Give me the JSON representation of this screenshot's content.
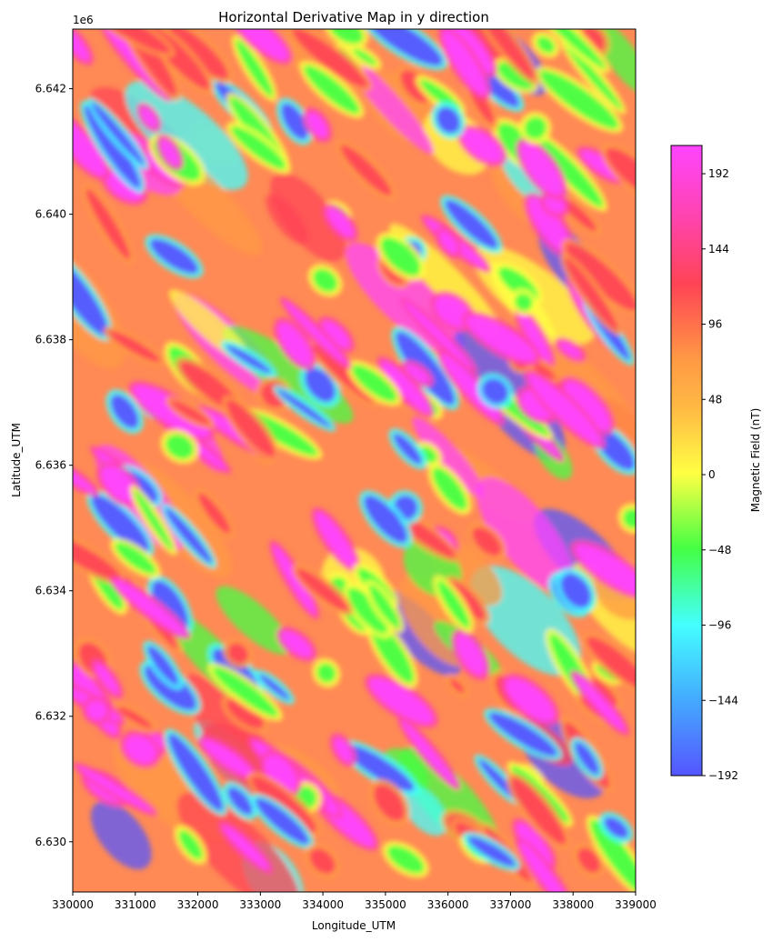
{
  "chart_data": {
    "type": "heatmap",
    "title": "Horizontal Derivative Map in y direction",
    "xlabel": "Longitude_UTM",
    "ylabel": "Latitude_UTM",
    "y_offset_label": "1e6",
    "xlim": [
      330000,
      339000
    ],
    "ylim": [
      6629200,
      6642950
    ],
    "x_ticks": [
      330000,
      331000,
      332000,
      333000,
      334000,
      335000,
      336000,
      337000,
      338000,
      339000
    ],
    "x_tick_labels": [
      "330000",
      "331000",
      "332000",
      "333000",
      "334000",
      "335000",
      "336000",
      "337000",
      "338000",
      "339000"
    ],
    "y_ticks": [
      6630000,
      6632000,
      6634000,
      6636000,
      6638000,
      6640000,
      6642000
    ],
    "y_tick_labels": [
      "6.630",
      "6.632",
      "6.634",
      "6.636",
      "6.638",
      "6.640",
      "6.642"
    ],
    "colorbar": {
      "label": "Magnetic Field (nT)",
      "range": [
        -192,
        210
      ],
      "ticks": [
        -192,
        -144,
        -96,
        -48,
        0,
        48,
        96,
        144,
        192
      ],
      "tick_labels": [
        "−192",
        "−144",
        "−96",
        "−48",
        "0",
        "48",
        "96",
        "144",
        "192"
      ],
      "colormap": "hsv (blue–cyan–green–yellow–orange–red–magenta)",
      "colors": [
        "#5555ff",
        "#44ffff",
        "#44ff44",
        "#ffff44",
        "#ff9944",
        "#ff4455",
        "#ff44ff"
      ]
    },
    "features": {
      "dominant_trend": "NW–SE elongated anomalies",
      "hillshade": true,
      "contour_lines": true
    }
  }
}
